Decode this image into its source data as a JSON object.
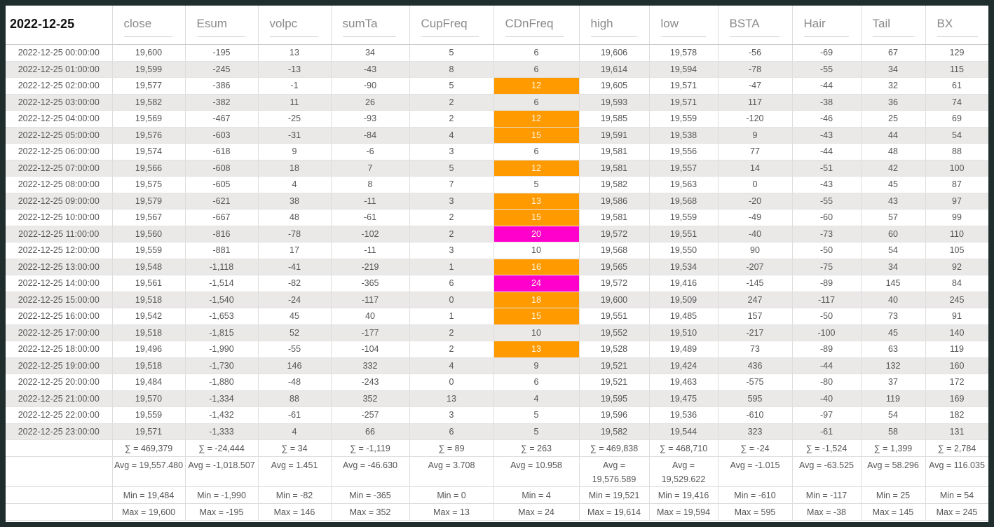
{
  "table": {
    "columns": [
      "2022-12-25",
      "close",
      "Esum",
      "volpc",
      "sumTa",
      "CupFreq",
      "CDnFreq",
      "high",
      "low",
      "BSTA",
      "Hair",
      "Tail",
      "BX"
    ],
    "rows": [
      [
        "2022-12-25 00:00:00",
        "19,600",
        "-195",
        "13",
        "34",
        "5",
        "6",
        "19,606",
        "19,578",
        "-56",
        "-69",
        "67",
        "129"
      ],
      [
        "2022-12-25 01:00:00",
        "19,599",
        "-245",
        "-13",
        "-43",
        "8",
        "6",
        "19,614",
        "19,594",
        "-78",
        "-55",
        "34",
        "115"
      ],
      [
        "2022-12-25 02:00:00",
        "19,577",
        "-386",
        "-1",
        "-90",
        "5",
        "12",
        "19,605",
        "19,571",
        "-47",
        "-44",
        "32",
        "61"
      ],
      [
        "2022-12-25 03:00:00",
        "19,582",
        "-382",
        "11",
        "26",
        "2",
        "6",
        "19,593",
        "19,571",
        "117",
        "-38",
        "36",
        "74"
      ],
      [
        "2022-12-25 04:00:00",
        "19,569",
        "-467",
        "-25",
        "-93",
        "2",
        "12",
        "19,585",
        "19,559",
        "-120",
        "-46",
        "25",
        "69"
      ],
      [
        "2022-12-25 05:00:00",
        "19,576",
        "-603",
        "-31",
        "-84",
        "4",
        "15",
        "19,591",
        "19,538",
        "9",
        "-43",
        "44",
        "54"
      ],
      [
        "2022-12-25 06:00:00",
        "19,574",
        "-618",
        "9",
        "-6",
        "3",
        "6",
        "19,581",
        "19,556",
        "77",
        "-44",
        "48",
        "88"
      ],
      [
        "2022-12-25 07:00:00",
        "19,566",
        "-608",
        "18",
        "7",
        "5",
        "12",
        "19,581",
        "19,557",
        "14",
        "-51",
        "42",
        "100"
      ],
      [
        "2022-12-25 08:00:00",
        "19,575",
        "-605",
        "4",
        "8",
        "7",
        "5",
        "19,582",
        "19,563",
        "0",
        "-43",
        "45",
        "87"
      ],
      [
        "2022-12-25 09:00:00",
        "19,579",
        "-621",
        "38",
        "-11",
        "3",
        "13",
        "19,586",
        "19,568",
        "-20",
        "-55",
        "43",
        "97"
      ],
      [
        "2022-12-25 10:00:00",
        "19,567",
        "-667",
        "48",
        "-61",
        "2",
        "15",
        "19,581",
        "19,559",
        "-49",
        "-60",
        "57",
        "99"
      ],
      [
        "2022-12-25 11:00:00",
        "19,560",
        "-816",
        "-78",
        "-102",
        "2",
        "20",
        "19,572",
        "19,551",
        "-40",
        "-73",
        "60",
        "110"
      ],
      [
        "2022-12-25 12:00:00",
        "19,559",
        "-881",
        "17",
        "-11",
        "3",
        "10",
        "19,568",
        "19,550",
        "90",
        "-50",
        "54",
        "105"
      ],
      [
        "2022-12-25 13:00:00",
        "19,548",
        "-1,118",
        "-41",
        "-219",
        "1",
        "16",
        "19,565",
        "19,534",
        "-207",
        "-75",
        "34",
        "92"
      ],
      [
        "2022-12-25 14:00:00",
        "19,561",
        "-1,514",
        "-82",
        "-365",
        "6",
        "24",
        "19,572",
        "19,416",
        "-145",
        "-89",
        "145",
        "84"
      ],
      [
        "2022-12-25 15:00:00",
        "19,518",
        "-1,540",
        "-24",
        "-117",
        "0",
        "18",
        "19,600",
        "19,509",
        "247",
        "-117",
        "40",
        "245"
      ],
      [
        "2022-12-25 16:00:00",
        "19,542",
        "-1,653",
        "45",
        "40",
        "1",
        "15",
        "19,551",
        "19,485",
        "157",
        "-50",
        "73",
        "91"
      ],
      [
        "2022-12-25 17:00:00",
        "19,518",
        "-1,815",
        "52",
        "-177",
        "2",
        "10",
        "19,552",
        "19,510",
        "-217",
        "-100",
        "45",
        "140"
      ],
      [
        "2022-12-25 18:00:00",
        "19,496",
        "-1,990",
        "-55",
        "-104",
        "2",
        "13",
        "19,528",
        "19,489",
        "73",
        "-89",
        "63",
        "119"
      ],
      [
        "2022-12-25 19:00:00",
        "19,518",
        "-1,730",
        "146",
        "332",
        "4",
        "9",
        "19,521",
        "19,424",
        "436",
        "-44",
        "132",
        "160"
      ],
      [
        "2022-12-25 20:00:00",
        "19,484",
        "-1,880",
        "-48",
        "-243",
        "0",
        "6",
        "19,521",
        "19,463",
        "-575",
        "-80",
        "37",
        "172"
      ],
      [
        "2022-12-25 21:00:00",
        "19,570",
        "-1,334",
        "88",
        "352",
        "13",
        "4",
        "19,595",
        "19,475",
        "595",
        "-40",
        "119",
        "169"
      ],
      [
        "2022-12-25 22:00:00",
        "19,559",
        "-1,432",
        "-61",
        "-257",
        "3",
        "5",
        "19,596",
        "19,536",
        "-610",
        "-97",
        "54",
        "182"
      ],
      [
        "2022-12-25 23:00:00",
        "19,571",
        "-1,333",
        "4",
        "66",
        "6",
        "5",
        "19,582",
        "19,544",
        "323",
        "-61",
        "58",
        "131"
      ]
    ],
    "footer": [
      [
        "∑ = 469,379",
        "∑ = -24,444",
        "∑ = 34",
        "∑ = -1,119",
        "∑ = 89",
        "∑ = 263",
        "∑ = 469,838",
        "∑ = 468,710",
        "∑ = -24",
        "∑ = -1,524",
        "∑ = 1,399",
        "∑ = 2,784"
      ],
      [
        "Avg = 19,557.480",
        "Avg = -1,018.507",
        "Avg = 1.451",
        "Avg = -46.630",
        "Avg = 3.708",
        "Avg = 10.958",
        "Avg = 19,576.589",
        "Avg = 19,529.622",
        "Avg = -1.015",
        "Avg = -63.525",
        "Avg = 58.296",
        "Avg = 116.035"
      ],
      [
        "Min = 19,484",
        "Min = -1,990",
        "Min = -82",
        "Min = -365",
        "Min = 0",
        "Min = 4",
        "Min = 19,521",
        "Min = 19,416",
        "Min = -610",
        "Min = -117",
        "Min = 25",
        "Min = 54"
      ],
      [
        "Max = 19,600",
        "Max = -195",
        "Max = 146",
        "Max = 352",
        "Max = 13",
        "Max = 24",
        "Max = 19,614",
        "Max = 19,594",
        "Max = 595",
        "Max = -38",
        "Max = 145",
        "Max = 245"
      ]
    ],
    "highlights": [
      {
        "row": 2,
        "column": 6,
        "color": "#ff9a00"
      },
      {
        "row": 4,
        "column": 6,
        "color": "#ff9a00"
      },
      {
        "row": 5,
        "column": 6,
        "color": "#ff9a00"
      },
      {
        "row": 7,
        "column": 6,
        "color": "#ff9a00"
      },
      {
        "row": 9,
        "column": 6,
        "color": "#ff9a00"
      },
      {
        "row": 10,
        "column": 6,
        "color": "#ff9a00"
      },
      {
        "row": 11,
        "column": 6,
        "color": "#ff00cc"
      },
      {
        "row": 13,
        "column": 6,
        "color": "#ff9a00"
      },
      {
        "row": 14,
        "column": 6,
        "color": "#ff00cc"
      },
      {
        "row": 15,
        "column": 6,
        "color": "#ff9a00"
      },
      {
        "row": 16,
        "column": 6,
        "color": "#ff9a00"
      },
      {
        "row": 18,
        "column": 6,
        "color": "#ff9a00"
      }
    ]
  }
}
